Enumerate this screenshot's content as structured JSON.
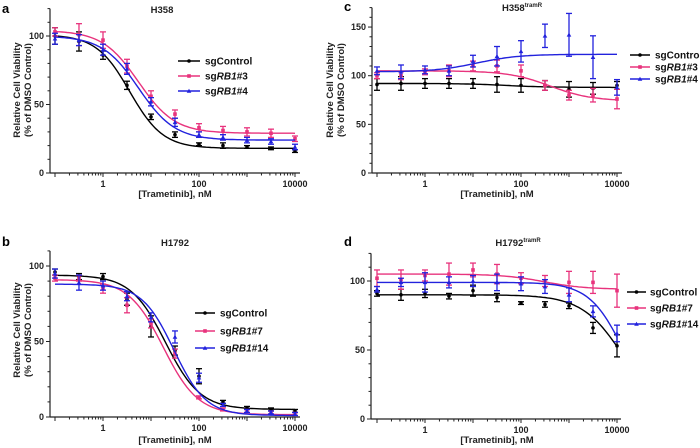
{
  "chart_data": [
    {
      "panel": "a",
      "type": "line",
      "title": "H358",
      "title_sup": "",
      "xlabel": "[Trametinib], nM",
      "ylabel": [
        "Relative Cell Viability",
        "(% of DMSO Control)"
      ],
      "xscale": "log",
      "xlim": [
        0.1,
        10000
      ],
      "xticks": [
        1,
        100,
        10000
      ],
      "xtick_labels": [
        "1",
        "100",
        "10000"
      ],
      "ylim": [
        0,
        120
      ],
      "yticks": [
        0,
        50,
        100
      ],
      "ytick_labels": [
        "0",
        "50",
        "100"
      ],
      "legend_position": "center-right-inside",
      "x": [
        0.1,
        0.316,
        1,
        3.16,
        10,
        31.6,
        100,
        316,
        1000,
        3162,
        10000
      ],
      "series": [
        {
          "name": "sgControl",
          "color": "#000000",
          "marker": "circle",
          "values": [
            100,
            96,
            86,
            64,
            41,
            28,
            21,
            20,
            19,
            18,
            16
          ],
          "errors": [
            6,
            7,
            3,
            3,
            2,
            2,
            1,
            2,
            1,
            1,
            1
          ],
          "fit": {
            "top": 101,
            "bottom": 18,
            "ec50": 3.6,
            "hill": 1.25
          }
        },
        {
          "name": "sgRB1#3",
          "color": "#e8337d",
          "marker": "square",
          "values": [
            103,
            101,
            97,
            78,
            56,
            43,
            33,
            31,
            30,
            29,
            25
          ],
          "errors": [
            3,
            8,
            6,
            5,
            4,
            3,
            3,
            3,
            3,
            3,
            2
          ],
          "fit": {
            "top": 104,
            "bottom": 29,
            "ec50": 5.5,
            "hill": 1.15
          }
        },
        {
          "name": "sgRB1#4",
          "color": "#2222dd",
          "marker": "triangle",
          "values": [
            98,
            97,
            90,
            76,
            52,
            37,
            28,
            26,
            24,
            23,
            19
          ],
          "errors": [
            4,
            4,
            4,
            4,
            3,
            3,
            2,
            2,
            2,
            2,
            2
          ],
          "fit": {
            "top": 100,
            "bottom": 24,
            "ec50": 5.5,
            "hill": 1.15
          }
        }
      ]
    },
    {
      "panel": "b",
      "type": "line",
      "title": "H1792",
      "title_sup": "",
      "xlabel": "[Trametinib], nM",
      "ylabel": [
        "Relative Cell Viability",
        "(% of DMSO Control)"
      ],
      "xscale": "log",
      "xlim": [
        0.1,
        10000
      ],
      "xticks": [
        1,
        100,
        10000
      ],
      "xtick_labels": [
        "1",
        "100",
        "10000"
      ],
      "ylim": [
        0,
        110
      ],
      "yticks": [
        0,
        50,
        100
      ],
      "ytick_labels": [
        "0",
        "50",
        "100"
      ],
      "legend_position": "center-right-inside",
      "x": [
        0.1,
        0.316,
        1,
        3.16,
        10,
        31.6,
        100,
        316,
        1000,
        3162,
        10000
      ],
      "series": [
        {
          "name": "sgControl",
          "color": "#000000",
          "marker": "circle",
          "values": [
            96,
            93,
            93,
            78,
            60,
            44,
            27,
            10,
            6,
            5,
            4
          ],
          "errors": [
            2,
            2,
            2,
            4,
            7,
            3,
            5,
            1,
            1,
            1,
            1
          ],
          "fit": {
            "top": 94,
            "bottom": 5,
            "ec50": 20,
            "hill": 1.2
          }
        },
        {
          "name": "sgRB1#7",
          "color": "#e8337d",
          "marker": "square",
          "values": [
            92,
            92,
            85,
            74,
            62,
            42,
            13,
            5,
            4,
            3,
            2
          ],
          "errors": [
            2,
            2,
            3,
            5,
            3,
            3,
            1,
            1,
            1,
            1,
            1
          ],
          "fit": {
            "top": 91,
            "bottom": 1.5,
            "ec50": 18,
            "hill": 1.2
          }
        },
        {
          "name": "sgRB1#14",
          "color": "#2222dd",
          "marker": "triangle",
          "values": [
            95,
            89,
            87,
            80,
            66,
            53,
            26,
            8,
            4,
            3,
            2
          ],
          "errors": [
            3,
            5,
            3,
            3,
            3,
            4,
            3,
            1,
            1,
            1,
            1
          ],
          "fit": {
            "top": 88,
            "bottom": 1,
            "ec50": 30,
            "hill": 1.3
          }
        }
      ]
    },
    {
      "panel": "c",
      "type": "line",
      "title": "H358",
      "title_sup": "tramR",
      "xlabel": "[Trametinib], nM",
      "ylabel": [
        "Relative Cell Viability",
        "(% of DMSO Control)"
      ],
      "xscale": "log",
      "xlim": [
        0.1,
        10000
      ],
      "xticks": [
        1,
        100,
        10000
      ],
      "xtick_labels": [
        "1",
        "100",
        "10000"
      ],
      "ylim": [
        0,
        170
      ],
      "yticks": [
        0,
        50,
        100,
        150
      ],
      "ytick_labels": [
        "0",
        "50",
        "100",
        "150"
      ],
      "legend_position": "right-outside",
      "x": [
        0.1,
        0.316,
        1,
        3.16,
        10,
        31.6,
        100,
        316,
        1000,
        3162,
        10000
      ],
      "series": [
        {
          "name": "sgControl",
          "color": "#000000",
          "marker": "circle",
          "values": [
            91,
            92,
            92,
            92,
            92,
            91,
            90,
            90,
            86,
            87,
            90
          ],
          "errors": [
            6,
            7,
            5,
            5,
            5,
            8,
            7,
            5,
            8,
            6,
            4
          ],
          "fit": {
            "top": 92,
            "bottom": 88,
            "ec50": 50,
            "hill": 1
          }
        },
        {
          "name": "sgRB1#3",
          "color": "#e8337d",
          "marker": "square",
          "values": [
            100,
            100,
            104,
            105,
            110,
            110,
            105,
            90,
            80,
            80,
            76
          ],
          "errors": [
            3,
            4,
            3,
            6,
            5,
            6,
            6,
            5,
            5,
            7,
            10
          ],
          "fit": {
            "top": 105,
            "bottom": 74,
            "ec50": 400,
            "hill": 1
          }
        },
        {
          "name": "sgRB1#4",
          "color": "#2222dd",
          "marker": "triangle",
          "values": [
            105,
            104,
            106,
            105,
            115,
            120,
            125,
            141,
            142,
            119,
            88
          ],
          "errors": [
            4,
            7,
            4,
            5,
            6,
            10,
            11,
            12,
            22,
            22,
            8
          ],
          "fit": {
            "top": 104,
            "bottom": 122,
            "ec50": 12,
            "hill": 1
          }
        }
      ]
    },
    {
      "panel": "d",
      "type": "line",
      "title": "H1792",
      "title_sup": "tramR",
      "xlabel": "[Trametinib], nM",
      "ylabel": [],
      "xscale": "log",
      "xlim": [
        0.1,
        10000
      ],
      "xticks": [
        1,
        100,
        10000
      ],
      "xtick_labels": [
        "1",
        "100",
        "10000"
      ],
      "ylim": [
        0,
        120
      ],
      "yticks": [
        0,
        50,
        100
      ],
      "ytick_labels": [
        "0",
        "50",
        "100"
      ],
      "legend_position": "right-outside",
      "x": [
        0.1,
        0.316,
        1,
        3.16,
        10,
        31.6,
        100,
        316,
        1000,
        3162,
        10000
      ],
      "series": [
        {
          "name": "sgControl",
          "color": "#000000",
          "marker": "circle",
          "values": [
            91,
            90,
            91,
            89,
            93,
            88,
            84,
            83,
            82,
            66,
            53
          ],
          "errors": [
            2,
            4,
            3,
            2,
            4,
            3,
            1,
            2,
            2,
            4,
            8
          ],
          "fit": {
            "top": 90,
            "bottom": 0,
            "ec50": 14000,
            "hill": 1
          }
        },
        {
          "name": "sgRB1#7",
          "color": "#e8337d",
          "marker": "square",
          "values": [
            102,
            101,
            104,
            105,
            108,
            105,
            102,
            100,
            99,
            99,
            93
          ],
          "errors": [
            6,
            7,
            4,
            8,
            5,
            7,
            4,
            4,
            8,
            8,
            12
          ],
          "fit": {
            "top": 105,
            "bottom": 94,
            "ec50": 300,
            "hill": 1
          }
        },
        {
          "name": "sgRB1#14",
          "color": "#2222dd",
          "marker": "triangle",
          "values": [
            94,
            99,
            99,
            99,
            100,
            99,
            98,
            96,
            90,
            78,
            62
          ],
          "errors": [
            2,
            3,
            7,
            4,
            4,
            6,
            5,
            5,
            5,
            4,
            6
          ],
          "fit": {
            "top": 99,
            "bottom": 0,
            "ec50": 14000,
            "hill": 1.2
          }
        }
      ]
    }
  ]
}
